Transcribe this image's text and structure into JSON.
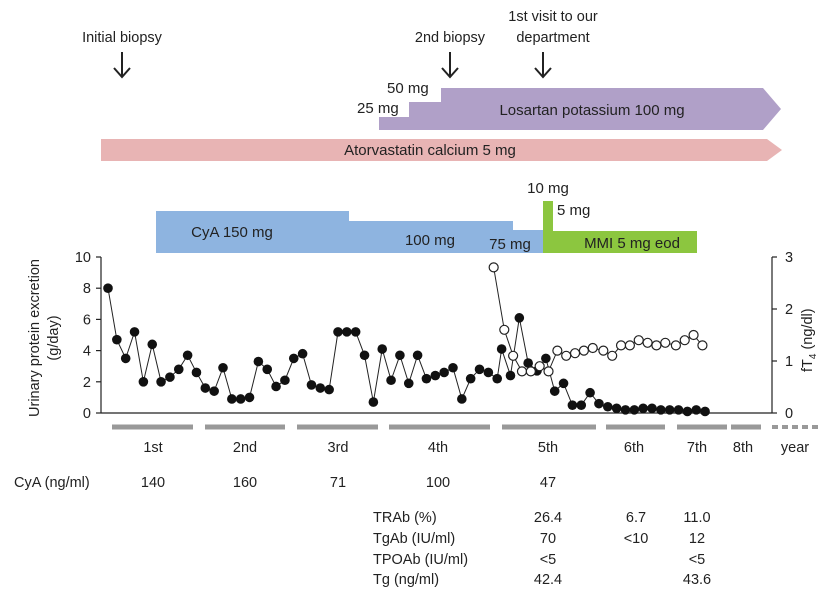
{
  "chart_data": {
    "type": "line",
    "events": [
      {
        "label": "Initial biopsy",
        "year": 0.15
      },
      {
        "label": "2nd biopsy",
        "year": 3.6
      },
      {
        "label_lines": [
          "1st visit to our",
          "department"
        ],
        "year": 4.44
      }
    ],
    "drugs": {
      "losartan": {
        "label": "Losartan potassium 100 mg",
        "step_labels": [
          "25 mg",
          "50 mg"
        ],
        "color": "#b0a0c8"
      },
      "atorvastatin": {
        "label": "Atorvastatin calcium 5 mg",
        "color": "#e8b4b4"
      },
      "cya": {
        "labels": [
          "CyA 150 mg",
          "100 mg",
          "75 mg"
        ],
        "color": "#8eb4e0"
      },
      "mmi": {
        "labels": [
          "10 mg",
          "5 mg",
          "MMI  5 mg eod"
        ],
        "color": "#8cc63f"
      }
    },
    "left_axis": {
      "title_lines": [
        "Urinary protein excretion",
        "(g/day)"
      ],
      "ticks": [
        "0",
        "2",
        "4",
        "6",
        "8",
        "10"
      ],
      "range": [
        0,
        10
      ]
    },
    "right_axis": {
      "title": "fT",
      "title_sub": "4",
      "title_unit": " (ng/dl)",
      "ticks": [
        "0",
        "1",
        "2",
        "3"
      ],
      "range": [
        0,
        3
      ]
    },
    "x_axis": {
      "categories": [
        "1st",
        "2nd",
        "3rd",
        "4th",
        "5th",
        "6th",
        "7th",
        "8th"
      ],
      "unit_label": "year",
      "range": [
        0,
        7.45
      ]
    },
    "series": [
      {
        "marker": "filled-circle",
        "x": [
          0.0,
          0.1,
          0.2,
          0.3,
          0.4,
          0.5,
          0.6,
          0.7,
          0.8,
          0.9,
          1.0,
          1.1,
          1.2,
          1.3,
          1.4,
          1.5,
          1.6,
          1.7,
          1.8,
          1.9,
          2.0,
          2.1,
          2.2,
          2.3,
          2.4,
          2.5,
          2.6,
          2.7,
          2.8,
          2.9,
          3.0,
          3.1,
          3.2,
          3.3,
          3.4,
          3.5,
          3.6,
          3.7,
          3.8,
          3.9,
          4.0,
          4.1,
          4.2,
          4.3,
          4.4,
          4.45,
          4.55,
          4.65,
          4.75,
          4.85,
          4.95,
          5.05,
          5.15,
          5.25,
          5.35,
          5.45,
          5.55,
          5.65,
          5.75,
          5.85,
          5.95,
          6.05,
          6.15,
          6.25,
          6.35,
          6.45,
          6.55,
          6.65,
          6.75
        ],
        "y": [
          8.0,
          4.7,
          3.5,
          5.2,
          2.0,
          4.4,
          2.0,
          2.3,
          2.8,
          3.7,
          2.6,
          1.6,
          1.4,
          2.9,
          0.9,
          0.9,
          1.0,
          3.3,
          2.8,
          1.7,
          2.1,
          3.5,
          3.8,
          1.8,
          1.6,
          1.5,
          5.2,
          5.2,
          5.2,
          3.7,
          0.7,
          4.1,
          2.1,
          3.7,
          1.9,
          3.7,
          2.2,
          2.4,
          2.6,
          2.9,
          0.9,
          2.2,
          2.8,
          2.6,
          2.2,
          4.1,
          2.4,
          6.1,
          3.2,
          2.7,
          3.5,
          1.4,
          1.9,
          0.5,
          0.5,
          1.3,
          0.6,
          0.4,
          0.3,
          0.2,
          0.2,
          0.3,
          0.3,
          0.2,
          0.2,
          0.2,
          0.1,
          0.2,
          0.1
        ]
      },
      {
        "marker": "open-circle",
        "axis": "right",
        "x": [
          4.36,
          4.48,
          4.58,
          4.68,
          4.78,
          4.88,
          4.98,
          5.08,
          5.18,
          5.28,
          5.38,
          5.48,
          5.6,
          5.7,
          5.8,
          5.9,
          6.0,
          6.1,
          6.2,
          6.3,
          6.42,
          6.52,
          6.62,
          6.72
        ],
        "y": [
          2.8,
          1.6,
          1.1,
          0.8,
          0.8,
          0.9,
          0.8,
          1.2,
          1.1,
          1.15,
          1.2,
          1.25,
          1.2,
          1.1,
          1.3,
          1.3,
          1.4,
          1.35,
          1.3,
          1.35,
          1.3,
          1.4,
          1.5,
          1.3
        ]
      }
    ],
    "cya_levels": {
      "label": "CyA (ng/ml)",
      "values": [
        "140",
        "160",
        "71",
        "100",
        "47"
      ]
    },
    "lab_table": {
      "rows": [
        {
          "label": "TRAb (%)",
          "values": [
            "26.4",
            "6.7",
            "11.0"
          ]
        },
        {
          "label": "TgAb (IU/ml)",
          "values": [
            "70",
            "<10",
            "12"
          ]
        },
        {
          "label": "TPOAb (IU/ml)",
          "values": [
            "<5",
            "",
            "<5"
          ]
        },
        {
          "label": "Tg (ng/ml)",
          "values": [
            "42.4",
            "",
            "43.6"
          ]
        }
      ]
    }
  }
}
